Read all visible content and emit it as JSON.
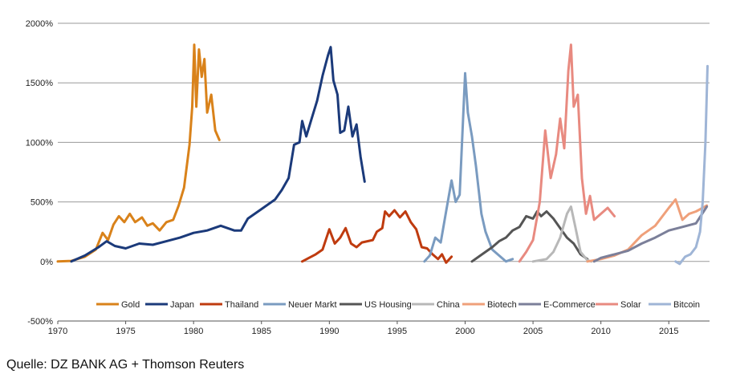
{
  "chart_data": {
    "type": "line",
    "title": "",
    "xlabel": "",
    "ylabel": "",
    "xlim": [
      1970,
      2018
    ],
    "ylim": [
      -500,
      2000
    ],
    "x_ticks": [
      "1970",
      "1975",
      "1980",
      "1985",
      "1990",
      "1995",
      "2000",
      "2005",
      "2010",
      "2015"
    ],
    "y_ticks": [
      "2000%",
      "1500%",
      "1000%",
      "500%",
      "0%",
      "-500%"
    ],
    "grid": "horizontal",
    "legend_position": "bottom",
    "series": [
      {
        "name": "Gold",
        "color": "#d9821a",
        "points": [
          [
            1970,
            0
          ],
          [
            1971,
            5
          ],
          [
            1972,
            40
          ],
          [
            1972.8,
            100
          ],
          [
            1973.3,
            240
          ],
          [
            1973.7,
            180
          ],
          [
            1974.1,
            310
          ],
          [
            1974.5,
            380
          ],
          [
            1974.9,
            330
          ],
          [
            1975.3,
            400
          ],
          [
            1975.7,
            330
          ],
          [
            1976.2,
            370
          ],
          [
            1976.6,
            300
          ],
          [
            1977,
            320
          ],
          [
            1977.5,
            260
          ],
          [
            1978,
            330
          ],
          [
            1978.5,
            350
          ],
          [
            1978.9,
            470
          ],
          [
            1979.3,
            620
          ],
          [
            1979.7,
            980
          ],
          [
            1979.9,
            1300
          ],
          [
            1980.05,
            1820
          ],
          [
            1980.2,
            1300
          ],
          [
            1980.4,
            1780
          ],
          [
            1980.6,
            1550
          ],
          [
            1980.8,
            1700
          ],
          [
            1981,
            1250
          ],
          [
            1981.3,
            1400
          ],
          [
            1981.6,
            1100
          ],
          [
            1981.9,
            1020
          ]
        ]
      },
      {
        "name": "Japan",
        "color": "#1b3a7a",
        "points": [
          [
            1971,
            0
          ],
          [
            1972,
            50
          ],
          [
            1973,
            120
          ],
          [
            1973.6,
            170
          ],
          [
            1974.2,
            130
          ],
          [
            1975,
            110
          ],
          [
            1976,
            150
          ],
          [
            1977,
            140
          ],
          [
            1978,
            170
          ],
          [
            1979,
            200
          ],
          [
            1980,
            240
          ],
          [
            1981,
            260
          ],
          [
            1982,
            300
          ],
          [
            1983,
            260
          ],
          [
            1983.5,
            260
          ],
          [
            1984,
            360
          ],
          [
            1985,
            440
          ],
          [
            1986,
            520
          ],
          [
            1986.5,
            600
          ],
          [
            1987,
            700
          ],
          [
            1987.4,
            980
          ],
          [
            1987.8,
            1000
          ],
          [
            1988,
            1180
          ],
          [
            1988.3,
            1050
          ],
          [
            1988.7,
            1200
          ],
          [
            1989.1,
            1350
          ],
          [
            1989.5,
            1560
          ],
          [
            1989.9,
            1730
          ],
          [
            1990.1,
            1800
          ],
          [
            1990.3,
            1520
          ],
          [
            1990.6,
            1400
          ],
          [
            1990.8,
            1080
          ],
          [
            1991.1,
            1100
          ],
          [
            1991.4,
            1300
          ],
          [
            1991.7,
            1050
          ],
          [
            1992,
            1150
          ],
          [
            1992.3,
            880
          ],
          [
            1992.6,
            670
          ]
        ]
      },
      {
        "name": "Thailand",
        "color": "#bf3b0f",
        "points": [
          [
            1988,
            0
          ],
          [
            1988.5,
            30
          ],
          [
            1989,
            60
          ],
          [
            1989.5,
            100
          ],
          [
            1990,
            270
          ],
          [
            1990.4,
            150
          ],
          [
            1990.8,
            200
          ],
          [
            1991.2,
            280
          ],
          [
            1991.6,
            150
          ],
          [
            1992,
            120
          ],
          [
            1992.4,
            160
          ],
          [
            1992.8,
            170
          ],
          [
            1993.2,
            180
          ],
          [
            1993.5,
            250
          ],
          [
            1993.9,
            280
          ],
          [
            1994.1,
            420
          ],
          [
            1994.4,
            380
          ],
          [
            1994.8,
            430
          ],
          [
            1995.2,
            370
          ],
          [
            1995.6,
            420
          ],
          [
            1996,
            330
          ],
          [
            1996.4,
            270
          ],
          [
            1996.8,
            120
          ],
          [
            1997.2,
            110
          ],
          [
            1997.6,
            60
          ],
          [
            1998,
            20
          ],
          [
            1998.3,
            60
          ],
          [
            1998.6,
            -10
          ],
          [
            1999,
            40
          ]
        ]
      },
      {
        "name": "Neuer Markt",
        "color": "#7a9bc0",
        "points": [
          [
            1997,
            0
          ],
          [
            1997.4,
            50
          ],
          [
            1997.8,
            200
          ],
          [
            1998.2,
            160
          ],
          [
            1998.6,
            420
          ],
          [
            1999,
            680
          ],
          [
            1999.3,
            500
          ],
          [
            1999.6,
            560
          ],
          [
            2000,
            1580
          ],
          [
            2000.2,
            1250
          ],
          [
            2000.5,
            1050
          ],
          [
            2000.8,
            800
          ],
          [
            2001.2,
            400
          ],
          [
            2001.5,
            250
          ],
          [
            2002,
            100
          ],
          [
            2002.5,
            50
          ],
          [
            2003,
            0
          ],
          [
            2003.5,
            20
          ]
        ]
      },
      {
        "name": "US Housing",
        "color": "#555555",
        "points": [
          [
            2000.5,
            0
          ],
          [
            2001,
            40
          ],
          [
            2001.5,
            80
          ],
          [
            2002,
            120
          ],
          [
            2002.5,
            170
          ],
          [
            2003,
            200
          ],
          [
            2003.5,
            260
          ],
          [
            2004,
            290
          ],
          [
            2004.5,
            380
          ],
          [
            2005,
            360
          ],
          [
            2005.3,
            420
          ],
          [
            2005.6,
            380
          ],
          [
            2006,
            420
          ],
          [
            2006.5,
            360
          ],
          [
            2007,
            280
          ],
          [
            2007.5,
            200
          ],
          [
            2008,
            150
          ],
          [
            2008.5,
            60
          ],
          [
            2009,
            20
          ]
        ]
      },
      {
        "name": "China",
        "color": "#b8b8b8",
        "points": [
          [
            2005,
            0
          ],
          [
            2005.5,
            10
          ],
          [
            2006,
            20
          ],
          [
            2006.5,
            80
          ],
          [
            2007,
            200
          ],
          [
            2007.5,
            400
          ],
          [
            2007.8,
            460
          ],
          [
            2008.1,
            300
          ],
          [
            2008.5,
            80
          ],
          [
            2009,
            10
          ],
          [
            2009.3,
            0
          ]
        ]
      },
      {
        "name": "Biotech",
        "color": "#efa07a",
        "points": [
          [
            2009,
            0
          ],
          [
            2010,
            20
          ],
          [
            2011,
            50
          ],
          [
            2012,
            100
          ],
          [
            2013,
            220
          ],
          [
            2014,
            300
          ],
          [
            2015,
            450
          ],
          [
            2015.5,
            520
          ],
          [
            2016,
            350
          ],
          [
            2016.5,
            400
          ],
          [
            2017,
            420
          ],
          [
            2017.5,
            450
          ],
          [
            2017.8,
            470
          ]
        ]
      },
      {
        "name": "E-Commerce",
        "color": "#7b7f99",
        "points": [
          [
            2009.5,
            0
          ],
          [
            2010,
            30
          ],
          [
            2011,
            60
          ],
          [
            2012,
            90
          ],
          [
            2013,
            150
          ],
          [
            2014,
            200
          ],
          [
            2015,
            260
          ],
          [
            2016,
            290
          ],
          [
            2017,
            320
          ],
          [
            2017.8,
            460
          ]
        ]
      },
      {
        "name": "Solar",
        "color": "#e88a80",
        "points": [
          [
            2004,
            0
          ],
          [
            2004.5,
            80
          ],
          [
            2005,
            180
          ],
          [
            2005.5,
            500
          ],
          [
            2005.9,
            1100
          ],
          [
            2006.3,
            700
          ],
          [
            2006.7,
            900
          ],
          [
            2007,
            1200
          ],
          [
            2007.3,
            950
          ],
          [
            2007.6,
            1600
          ],
          [
            2007.8,
            1820
          ],
          [
            2008,
            1300
          ],
          [
            2008.3,
            1400
          ],
          [
            2008.6,
            700
          ],
          [
            2008.9,
            400
          ],
          [
            2009.2,
            550
          ],
          [
            2009.5,
            350
          ],
          [
            2010,
            400
          ],
          [
            2010.5,
            450
          ],
          [
            2011,
            380
          ]
        ]
      },
      {
        "name": "Bitcoin",
        "color": "#9fb5d6",
        "points": [
          [
            2015.5,
            0
          ],
          [
            2015.8,
            -20
          ],
          [
            2016.2,
            40
          ],
          [
            2016.6,
            60
          ],
          [
            2017,
            120
          ],
          [
            2017.3,
            250
          ],
          [
            2017.5,
            500
          ],
          [
            2017.7,
            1000
          ],
          [
            2017.85,
            1640
          ]
        ]
      }
    ]
  },
  "source": "Quelle: DZ BANK AG + Thomson Reuters"
}
